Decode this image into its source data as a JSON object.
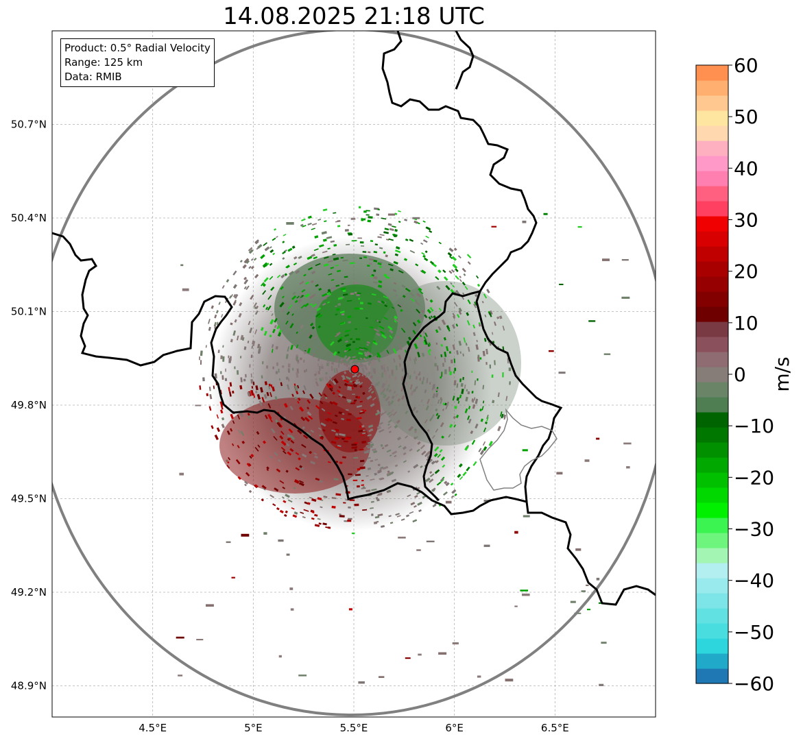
{
  "title": "14.08.2025 21:18 UTC",
  "info_box": {
    "line1": "Product: 0.5° Radial Velocity",
    "line2": "Range: 125 km",
    "line3": "Data: RMIB"
  },
  "map": {
    "lon_range": [
      4.0,
      7.0
    ],
    "lat_range": [
      48.8,
      51.0
    ],
    "x_ticks": [
      "4.5°E",
      "5°E",
      "5.5°E",
      "6°E",
      "6.5°E"
    ],
    "y_ticks": [
      "50.7°N",
      "50.4°N",
      "50.1°N",
      "49.8°N",
      "49.5°N",
      "49.2°N",
      "48.9°N"
    ],
    "radar_site": {
      "lon": 5.505,
      "lat": 49.915
    },
    "range_km": 125,
    "grid": true
  },
  "colorbar": {
    "label": "m/s",
    "range": [
      -60,
      60
    ],
    "ticks": [
      "60",
      "50",
      "40",
      "30",
      "20",
      "10",
      "0",
      "−10",
      "−20",
      "−30",
      "−40",
      "−50",
      "−60"
    ],
    "colors": [
      "#1f77b4",
      "#21a9c9",
      "#2dd6dc",
      "#49dde0",
      "#62e1e3",
      "#7de5e7",
      "#98eaec",
      "#b3eff1",
      "#a3f5b3",
      "#6ef57e",
      "#3bf451",
      "#00f000",
      "#00d800",
      "#00c000",
      "#00a800",
      "#009000",
      "#007800",
      "#006400",
      "#4e7e52",
      "#6a8468",
      "#867c78",
      "#8e6c72",
      "#8a505c",
      "#7a3a44",
      "#6e0000",
      "#820000",
      "#960000",
      "#a80000",
      "#c00000",
      "#d80000",
      "#f00000",
      "#ff4060",
      "#ff6080",
      "#ff80b0",
      "#ff9ac8",
      "#ffb0c0",
      "#ffd8b0",
      "#ffe6a0",
      "#ffc890",
      "#ffb070",
      "#ff9050"
    ]
  },
  "colors": {
    "range_ring": "#808080",
    "border": "#000000",
    "lux_border": "#808080",
    "outbound": "#8b0000",
    "inbound": "#008000",
    "neutral": "#7e7575",
    "radar_marker": "#ff0000"
  }
}
